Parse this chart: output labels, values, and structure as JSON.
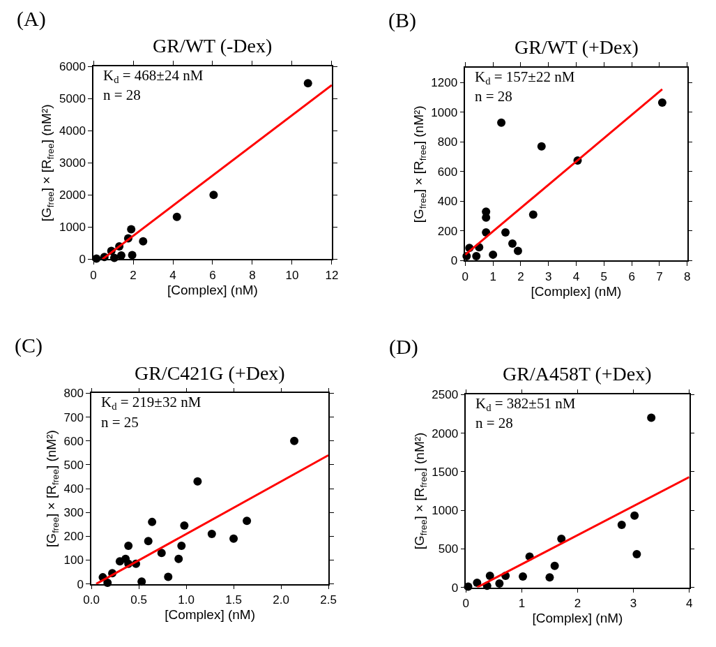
{
  "chart_data": [
    {
      "type": "scatter",
      "title": "GR/WT (-Dex)",
      "xlabel": "[Complex] (nM)",
      "ylabel": "[G$_{free}$] × [R$_{free}$] (nM²)",
      "annotations": [
        "(A)",
        "K$_{d}$ = 468±24 nM",
        "n = 28"
      ],
      "xlim": [
        0,
        12
      ],
      "xticks": [
        0,
        2,
        4,
        6,
        8,
        10,
        12
      ],
      "ylim": [
        0,
        6000
      ],
      "yticks": [
        0,
        1000,
        2000,
        3000,
        4000,
        5000,
        6000
      ],
      "marker": "circle",
      "series": [
        {
          "color": "#000000",
          "x": [
            10.8,
            6.05,
            4.2,
            2.5,
            1.9,
            1.95,
            1.75,
            1.3,
            1.4,
            0.9,
            1.05,
            0.55,
            0.15
          ],
          "values": [
            5480,
            2000,
            1320,
            560,
            930,
            130,
            650,
            400,
            120,
            260,
            40,
            70,
            20
          ]
        },
        {
          "type": "line",
          "color": "#ff0000",
          "marker": "none",
          "line_style": "solid",
          "x": [
            0.45,
            12
          ],
          "values": [
            0,
            5420
          ]
        }
      ]
    },
    {
      "type": "scatter",
      "title": "GR/WT (+Dex)",
      "xlabel": "[Complex] (nM)",
      "ylabel": "[G$_{free}$] × [R$_{free}$] (nM²)",
      "annotations": [
        "(B)",
        "K$_{d}$ = 157±22 nM",
        "n = 28"
      ],
      "xlim": [
        0,
        8
      ],
      "xticks": [
        0,
        1,
        2,
        3,
        4,
        5,
        6,
        7,
        8
      ],
      "ylim": [
        0,
        1300
      ],
      "yticks": [
        0,
        200,
        400,
        600,
        800,
        1000,
        1200
      ],
      "marker": "circle",
      "series": [
        {
          "color": "#000000",
          "x": [
            7.1,
            4.05,
            2.75,
            1.3,
            2.45,
            0.75,
            0.75,
            0.75,
            1.45,
            1.7,
            1.9,
            1.0,
            0.05,
            0.15,
            0.4,
            0.5
          ],
          "values": [
            1065,
            675,
            770,
            930,
            310,
            330,
            290,
            190,
            190,
            115,
            65,
            40,
            30,
            85,
            30,
            90
          ]
        },
        {
          "type": "line",
          "color": "#ff0000",
          "marker": "none",
          "line_style": "solid",
          "x": [
            0,
            7.1
          ],
          "values": [
            40,
            1155
          ]
        }
      ]
    },
    {
      "type": "scatter",
      "title": "GR/C421G (+Dex)",
      "xlabel": "[Complex] (nM)",
      "ylabel": "[G$_{free}$] × [R$_{free}$] (nM²)",
      "annotations": [
        "(C)",
        "K$_{d}$ = 219±32 nM",
        "n = 25"
      ],
      "xlim": [
        0,
        2.5
      ],
      "xticks": [
        {
          "value": 0,
          "label": "0.0"
        },
        0.5,
        {
          "value": 1,
          "label": "1.0"
        },
        1.5,
        {
          "value": 2,
          "label": "2.0"
        },
        2.5
      ],
      "ylim": [
        0,
        800
      ],
      "yticks": [
        0,
        100,
        200,
        300,
        400,
        500,
        600,
        700,
        800
      ],
      "marker": "circle",
      "series": [
        {
          "color": "#000000",
          "x": [
            2.14,
            1.12,
            0.64,
            0.98,
            1.64,
            1.27,
            1.5,
            0.6,
            0.39,
            0.95,
            0.74,
            0.92,
            0.3,
            0.36,
            0.39,
            0.47,
            0.81,
            0.53,
            0.22,
            0.12,
            0.17
          ],
          "values": [
            600,
            430,
            260,
            245,
            265,
            210,
            190,
            180,
            160,
            160,
            130,
            105,
            95,
            105,
            85,
            85,
            30,
            10,
            45,
            28,
            5
          ]
        },
        {
          "type": "line",
          "color": "#ff0000",
          "marker": "none",
          "line_style": "solid",
          "x": [
            0.05,
            2.5
          ],
          "values": [
            0,
            540
          ]
        }
      ]
    },
    {
      "type": "scatter",
      "title": "GR/A458T (+Dex)",
      "xlabel": "[Complex] (nM)",
      "ylabel": "[G$_{free}$] × [R$_{free}$] (nM²)",
      "annotations": [
        "(D)",
        "K$_{d}$ = 382±51 nM",
        "n = 28"
      ],
      "xlim": [
        0,
        4
      ],
      "xticks": [
        0,
        1,
        2,
        3,
        4
      ],
      "ylim": [
        0,
        2500
      ],
      "yticks": [
        0,
        500,
        1000,
        1500,
        2000,
        2500
      ],
      "marker": "circle",
      "series": [
        {
          "color": "#000000",
          "x": [
            3.32,
            2.79,
            3.02,
            3.06,
            1.71,
            1.59,
            1.5,
            1.14,
            1.02,
            0.04,
            0.2,
            0.38,
            0.43,
            0.6,
            0.71
          ],
          "values": [
            2200,
            810,
            930,
            430,
            630,
            280,
            130,
            400,
            140,
            10,
            60,
            20,
            150,
            50,
            150
          ]
        },
        {
          "type": "line",
          "color": "#ff0000",
          "marker": "none",
          "line_style": "solid",
          "x": [
            0.2,
            4
          ],
          "values": [
            0,
            1430
          ]
        }
      ]
    }
  ]
}
